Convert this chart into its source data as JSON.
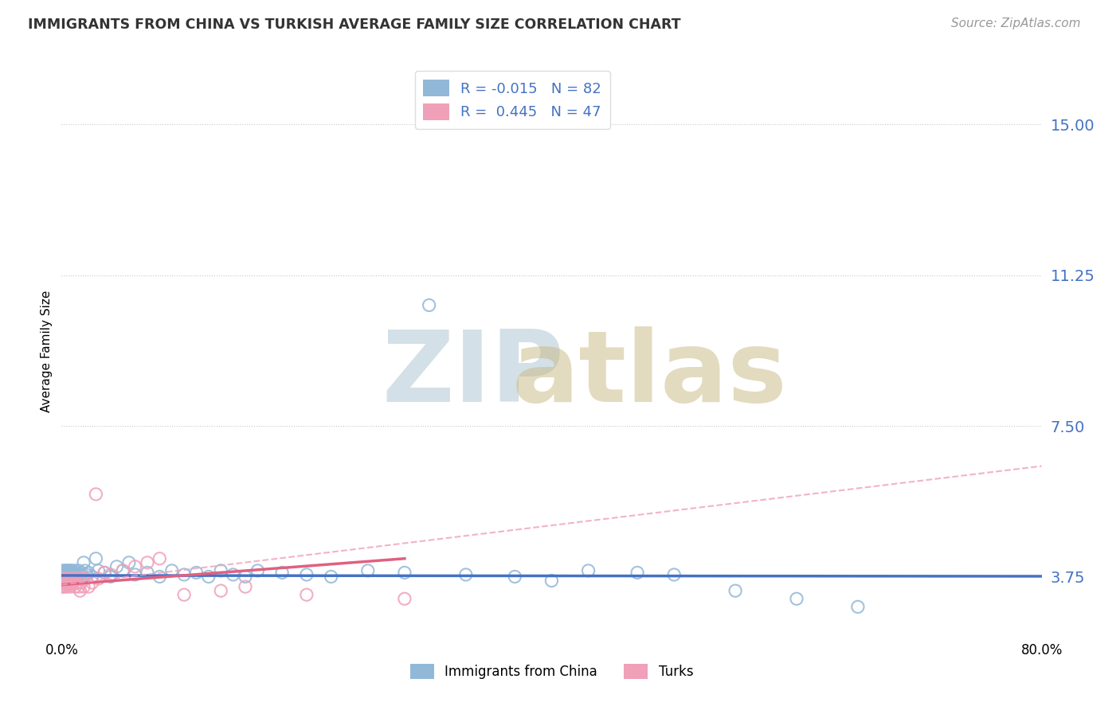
{
  "title": "IMMIGRANTS FROM CHINA VS TURKISH AVERAGE FAMILY SIZE CORRELATION CHART",
  "source": "Source: ZipAtlas.com",
  "ylabel": "Average Family Size",
  "yticks": [
    3.75,
    7.5,
    11.25,
    15.0
  ],
  "xlim": [
    0.0,
    80.0
  ],
  "ylim": [
    2.2,
    16.5
  ],
  "color_china": "#92b8d8",
  "color_turks": "#f0a0b8",
  "color_china_line": "#4472c4",
  "color_turks_line": "#e06080",
  "color_turks_dash": "#f0a0b8",
  "background_color": "#ffffff",
  "grid_color": "#c8c8c8",
  "china_scatter_x": [
    0.05,
    0.08,
    0.1,
    0.12,
    0.15,
    0.18,
    0.2,
    0.22,
    0.25,
    0.28,
    0.3,
    0.32,
    0.35,
    0.38,
    0.4,
    0.42,
    0.45,
    0.48,
    0.5,
    0.52,
    0.55,
    0.58,
    0.6,
    0.62,
    0.65,
    0.68,
    0.7,
    0.72,
    0.75,
    0.78,
    0.8,
    0.85,
    0.9,
    0.95,
    1.0,
    1.05,
    1.1,
    1.15,
    1.2,
    1.3,
    1.4,
    1.5,
    1.6,
    1.7,
    1.8,
    1.9,
    2.0,
    2.2,
    2.5,
    2.8,
    3.0,
    3.5,
    4.0,
    4.5,
    5.0,
    5.5,
    6.0,
    7.0,
    8.0,
    9.0,
    10.0,
    11.0,
    12.0,
    13.0,
    14.0,
    15.0,
    16.0,
    18.0,
    20.0,
    22.0,
    25.0,
    28.0,
    30.0,
    33.0,
    37.0,
    40.0,
    43.0,
    47.0,
    50.0,
    55.0,
    60.0,
    65.0
  ],
  "china_scatter_y": [
    3.7,
    3.8,
    3.9,
    3.7,
    3.75,
    3.85,
    3.8,
    3.65,
    3.9,
    3.8,
    3.7,
    3.85,
    3.75,
    3.8,
    3.9,
    3.7,
    3.85,
    3.75,
    3.8,
    3.7,
    3.85,
    3.9,
    3.75,
    3.8,
    3.7,
    3.85,
    3.9,
    3.75,
    3.8,
    3.7,
    3.85,
    3.9,
    3.8,
    3.75,
    3.7,
    3.85,
    3.9,
    3.75,
    3.8,
    3.7,
    3.9,
    3.8,
    3.85,
    3.75,
    4.1,
    3.9,
    3.8,
    3.85,
    3.75,
    4.2,
    3.9,
    3.85,
    3.75,
    4.0,
    3.9,
    4.1,
    3.8,
    3.85,
    3.75,
    3.9,
    3.8,
    3.85,
    3.75,
    3.9,
    3.8,
    3.75,
    3.9,
    3.85,
    3.8,
    3.75,
    3.9,
    3.85,
    10.5,
    3.8,
    3.75,
    3.65,
    3.9,
    3.85,
    3.8,
    3.4,
    3.2,
    3.0
  ],
  "turks_scatter_x": [
    0.05,
    0.08,
    0.1,
    0.12,
    0.15,
    0.18,
    0.2,
    0.25,
    0.3,
    0.35,
    0.4,
    0.45,
    0.5,
    0.55,
    0.6,
    0.65,
    0.7,
    0.75,
    0.8,
    0.85,
    0.9,
    0.95,
    1.0,
    1.1,
    1.2,
    1.3,
    1.4,
    1.5,
    1.6,
    1.7,
    1.8,
    2.0,
    2.2,
    2.5,
    2.8,
    3.0,
    3.5,
    4.0,
    5.0,
    6.0,
    7.0,
    8.0,
    10.0,
    13.0,
    15.0,
    20.0,
    28.0
  ],
  "turks_scatter_y": [
    3.6,
    3.5,
    3.7,
    3.6,
    3.5,
    3.65,
    3.7,
    3.55,
    3.6,
    3.7,
    3.5,
    3.6,
    3.65,
    3.55,
    3.6,
    3.7,
    3.5,
    3.6,
    3.65,
    3.7,
    3.55,
    3.6,
    3.65,
    3.5,
    3.6,
    3.7,
    3.5,
    3.4,
    3.6,
    3.7,
    3.5,
    3.7,
    3.5,
    3.6,
    5.8,
    3.7,
    3.85,
    3.8,
    3.9,
    4.0,
    4.1,
    4.2,
    3.3,
    3.4,
    3.5,
    3.3,
    3.2
  ],
  "china_line_x": [
    0,
    80
  ],
  "china_line_y": [
    3.78,
    3.76
  ],
  "turks_solid_line_x": [
    0,
    28
  ],
  "turks_solid_line_y": [
    3.55,
    4.2
  ],
  "turks_dash_line_x": [
    0,
    80
  ],
  "turks_dash_line_y": [
    3.55,
    6.5
  ]
}
